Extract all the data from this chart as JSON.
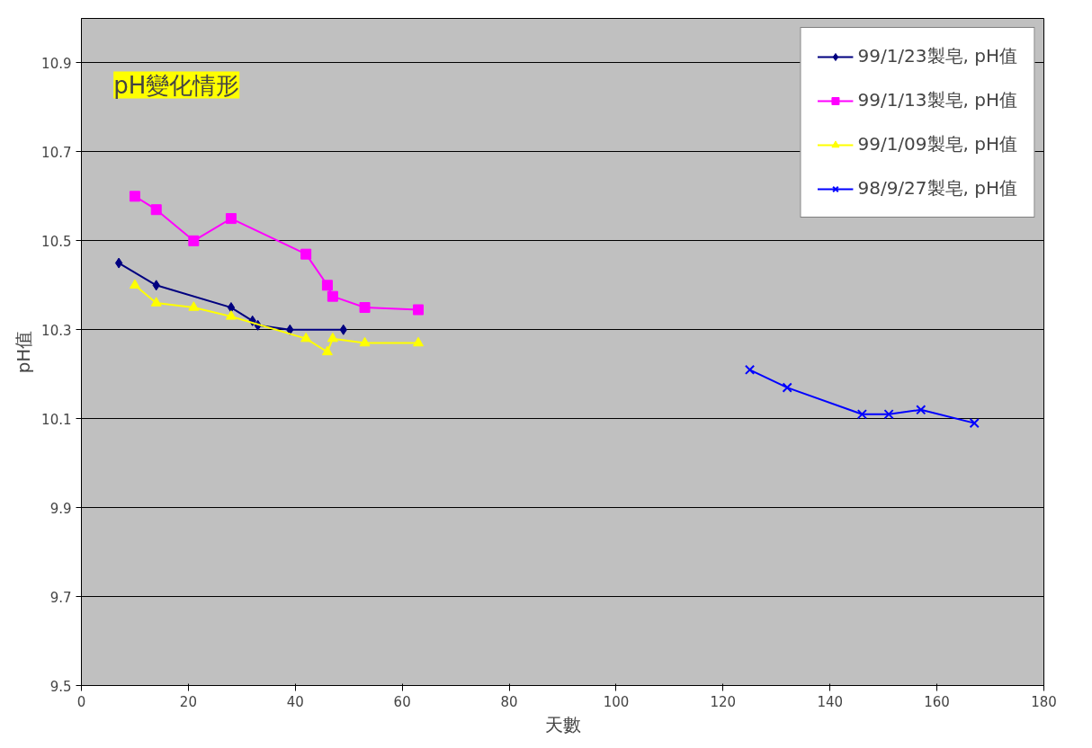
{
  "chart_data": {
    "type": "line",
    "title": "pH變化情形",
    "xlabel": "天數",
    "ylabel": "pH值",
    "xlim": [
      0,
      180
    ],
    "ylim": [
      9.5,
      11.0
    ],
    "xticks": [
      0,
      20,
      40,
      60,
      80,
      100,
      120,
      140,
      160,
      180
    ],
    "yticks": [
      9.5,
      9.7,
      9.9,
      10.1,
      10.3,
      10.5,
      10.7,
      10.9
    ],
    "grid": "y",
    "legend": "top right",
    "series": [
      {
        "name": "99/1/23製皂, pH值",
        "color": "#000080",
        "marker": "diamond",
        "x": [
          7,
          14,
          28,
          32,
          33,
          39,
          49
        ],
        "values": [
          10.45,
          10.4,
          10.35,
          10.32,
          10.31,
          10.3,
          10.3
        ]
      },
      {
        "name": "99/1/13製皂, pH值",
        "color": "#ff00ff",
        "marker": "square",
        "x": [
          10,
          14,
          21,
          28,
          42,
          46,
          47,
          53,
          63
        ],
        "values": [
          10.6,
          10.57,
          10.5,
          10.55,
          10.47,
          10.4,
          10.375,
          10.35,
          10.345
        ]
      },
      {
        "name": "99/1/09製皂, pH值",
        "color": "#ffff00",
        "marker": "triangle",
        "x": [
          10,
          14,
          21,
          28,
          42,
          46,
          47,
          53,
          63
        ],
        "values": [
          10.4,
          10.36,
          10.35,
          10.33,
          10.28,
          10.25,
          10.28,
          10.27,
          10.27
        ]
      },
      {
        "name": "98/9/27製皂, pH值",
        "color": "#0000ff",
        "marker": "cross",
        "x": [
          125,
          132,
          146,
          151,
          157,
          167
        ],
        "values": [
          10.21,
          10.17,
          10.11,
          10.11,
          10.12,
          10.09
        ]
      }
    ]
  }
}
